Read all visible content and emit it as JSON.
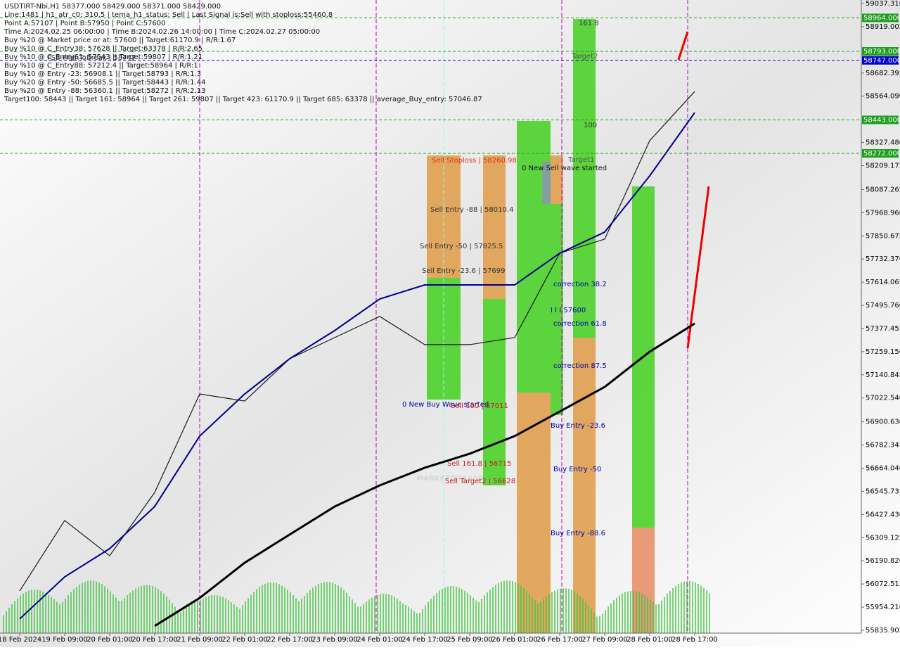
{
  "chart_data": {
    "type": "line",
    "header_lines": [
      "USDTIRT-Nbi,H1  58377.000 58429.000 58371.000 58429.000",
      "Line:1481  | h1_atr_c0: 310.5  | tema_h1_status: Sell  | Last Signal is:Sell with stoploss:55460.8",
      "Point A:57107  | Point B:57950  | Point C:57600",
      "Time A:2024.02.25 06:00:00  | Time B:2024.02.26 14:00:00  | Time C:2024.02.27 05:00:00",
      "Buy %20 @ Market price or at: 57600  || Target:61170.9  | R/R:1.67",
      "Buy %10 @ C_Entry38: 57628  || Target:63378  | R/R:2.65",
      "Buy %10 @ C_Entry61: 57543  || Target:59807  | R/R:1.21",
      "Buy %10 @ C_Entry88: 57212.4  || Target:58964  | R/R:1",
      "Buy %10 @ Entry -23: 56908.1  || Target:58793  | R/R:1.3",
      "Buy %20 @ Entry -50: 56685.5  || Target:58443  | R/R:1.44",
      "Buy %20 @ Entry -88: 56360.1  || Target:58272  | R/R:2.13",
      "Target100: 58443  || Target 161: 58964  || Target 261: 59807  || Target 423: 61170.9  || Target 685: 63378  || average_Buy_entry: 57046.87"
    ],
    "categories": [
      "18 Feb 2024",
      "19 Feb 09:00",
      "20 Feb 01:00",
      "20 Feb 17:00",
      "21 Feb 09:00",
      "22 Feb 01:00",
      "22 Feb 17:00",
      "23 Feb 09:00",
      "24 Feb 01:00",
      "24 Feb 17:00",
      "25 Feb 09:00",
      "26 Feb 01:00",
      "26 Feb 17:00",
      "27 Feb 09:00",
      "28 Feb 01:00",
      "28 Feb 17:00"
    ],
    "series": [
      {
        "color": "#1a1a1a",
        "values": [
          56037,
          56397,
          56217,
          56540,
          57043,
          57007,
          57223,
          57331,
          57439,
          57295,
          57295,
          57331,
          57762,
          57834,
          58337,
          58588
        ]
      },
      {
        "color": "#00008b",
        "values": [
          55894,
          56109,
          56253,
          56468,
          56828,
          57043,
          57223,
          57367,
          57528,
          57600,
          57600,
          57600,
          57762,
          57870,
          58157,
          58480
        ]
      },
      {
        "color": "#000000",
        "values": [
          null,
          null,
          null,
          55858,
          56001,
          56181,
          56325,
          56468,
          56576,
          56666,
          56738,
          56828,
          56953,
          57079,
          57259,
          57403
        ]
      }
    ],
    "ylim": [
      55821.5,
      59055.3
    ],
    "yticks": [
      {
        "value": 59037.31,
        "label": "59037.310"
      },
      {
        "value": 58919.005,
        "label": "58919.005"
      },
      {
        "value": 58682.395,
        "label": "58682.395"
      },
      {
        "value": 58564.09,
        "label": "58564.090"
      },
      {
        "value": 58327.48,
        "label": "58327.480"
      },
      {
        "value": 58209.175,
        "label": "58209.175"
      },
      {
        "value": 58087.265,
        "label": "58087.265"
      },
      {
        "value": 57968.96,
        "label": "57968.960"
      },
      {
        "value": 57850.675,
        "label": "57850.675"
      },
      {
        "value": 57732.37,
        "label": "57732.370"
      },
      {
        "value": 57614.065,
        "label": "57614.065"
      },
      {
        "value": 57495.76,
        "label": "57495.760"
      },
      {
        "value": 57377.455,
        "label": "57377.455"
      },
      {
        "value": 57259.15,
        "label": "57259.150"
      },
      {
        "value": 57140.845,
        "label": "57140.845"
      },
      {
        "value": 57022.54,
        "label": "57022.540"
      },
      {
        "value": 56900.63,
        "label": "56900.630"
      },
      {
        "value": 56782.345,
        "label": "56782.345"
      },
      {
        "value": 56664.04,
        "label": "56664.040"
      },
      {
        "value": 56545.735,
        "label": "56545.735"
      },
      {
        "value": 56427.43,
        "label": "56427.430"
      },
      {
        "value": 56309.125,
        "label": "56309.125"
      },
      {
        "value": 56190.82,
        "label": "56190.820"
      },
      {
        "value": 56072.515,
        "label": "56072.515"
      },
      {
        "value": 55954.21,
        "label": "55954.210"
      },
      {
        "value": 55835.905,
        "label": "55835.905"
      }
    ],
    "price_levels": [
      {
        "value": 58964,
        "label": "58964.000",
        "color": "#1e9e1e"
      },
      {
        "value": 58793,
        "label": "58793.000",
        "color": "#1e9e1e"
      },
      {
        "value": 58747,
        "label": "58747.000",
        "color": "#0000cc"
      },
      {
        "value": 58443,
        "label": "58443.000",
        "color": "#1e9e1e"
      },
      {
        "value": 58272,
        "label": "58272.000",
        "color": "#1e9e1e"
      }
    ],
    "annotations": [
      "161.8",
      "Target2",
      "100",
      "Target1",
      "Sell Stoploss | 58260.98",
      "0 New Sell wave started",
      "Sell Entry -88 | 58010.4",
      "Sell Entry -50 | 57825.5",
      "Sell Entry -23.6 | 57699",
      "I I I  57600",
      "correction 38.2",
      "correction 61.8",
      "correction 87.5",
      "0 New Buy Wave started",
      "Sell 100 | 57011",
      "Buy Entry -23.6",
      "Sell 161.8 | 56715",
      "Buy Entry -50",
      "Sell Target2 | 56628",
      "Buy Entry -88.6",
      "FSB-HighToBreak | 58747",
      "MARKETZITRADE"
    ]
  }
}
